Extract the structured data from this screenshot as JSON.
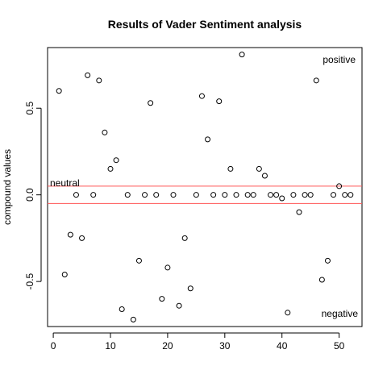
{
  "chart_data": {
    "type": "scatter",
    "title": "Results of Vader Sentiment analysis",
    "xlabel": "",
    "ylabel": "compound values",
    "xlim": [
      -1,
      54
    ],
    "ylim": [
      -0.76,
      0.85
    ],
    "x_ticks": [
      0,
      10,
      20,
      30,
      40,
      50
    ],
    "y_ticks": [
      -0.5,
      0.0,
      0.5
    ],
    "y_tick_labels": [
      "-0.5",
      "0.0",
      "0.5"
    ],
    "grid": false,
    "reference_lines": [
      {
        "y": 0.05,
        "color": "#ff5555"
      },
      {
        "y": -0.05,
        "color": "#ff5555"
      }
    ],
    "annotations": [
      {
        "text": "positive"
      },
      {
        "text": "neutral"
      },
      {
        "text": "negative"
      }
    ],
    "x": [
      1,
      2,
      3,
      4,
      5,
      6,
      7,
      8,
      9,
      10,
      11,
      12,
      13,
      14,
      15,
      16,
      17,
      18,
      19,
      20,
      21,
      22,
      23,
      24,
      25,
      26,
      27,
      28,
      29,
      30,
      31,
      32,
      33,
      34,
      35,
      36,
      37,
      38,
      39,
      40,
      41,
      42,
      43,
      44,
      45,
      46,
      47,
      48,
      49,
      50,
      51,
      52
    ],
    "y": [
      0.6,
      -0.46,
      -0.23,
      0.0,
      -0.25,
      0.69,
      0.0,
      0.66,
      0.36,
      0.15,
      0.2,
      -0.66,
      0.0,
      -0.72,
      -0.38,
      0.0,
      0.53,
      0.0,
      -0.6,
      -0.42,
      0.0,
      -0.64,
      -0.25,
      -0.54,
      0.0,
      0.57,
      0.32,
      0.0,
      0.54,
      0.0,
      0.15,
      0.0,
      0.81,
      0.0,
      0.0,
      0.15,
      0.11,
      0.0,
      0.0,
      -0.02,
      -0.68,
      0.0,
      -0.1,
      0.0,
      0.0,
      0.66,
      -0.49,
      -0.38,
      0.0,
      0.05,
      0.0,
      0.0
    ]
  }
}
